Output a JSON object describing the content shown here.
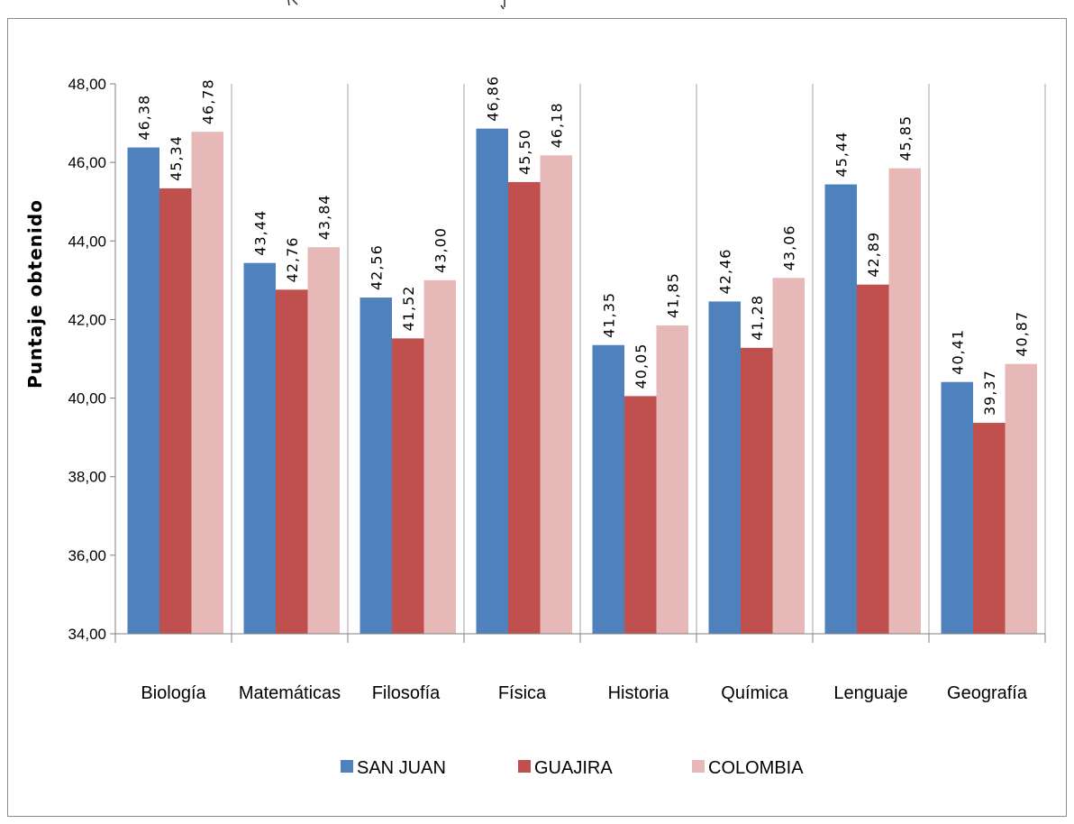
{
  "chart_data": {
    "type": "bar",
    "title": "",
    "xlabel": "",
    "ylabel": "Puntaje obtenido",
    "ylim": [
      34,
      48
    ],
    "yticks": [
      "34,00",
      "36,00",
      "38,00",
      "40,00",
      "42,00",
      "44,00",
      "46,00",
      "48,00"
    ],
    "grid": "vertical category separators",
    "legend_position": "bottom",
    "categories": [
      "Biología",
      "Matemáticas",
      "Filosofía",
      "Física",
      "Historia",
      "Química",
      "Lenguaje",
      "Geografía"
    ],
    "series": [
      {
        "name": "SAN JUAN",
        "color": "#4f81bd",
        "values": [
          46.38,
          43.44,
          42.56,
          46.86,
          41.35,
          42.46,
          45.44,
          40.41
        ],
        "labels": [
          "46,38",
          "43,44",
          "42,56",
          "46,86",
          "41,35",
          "42,46",
          "45,44",
          "40,41"
        ]
      },
      {
        "name": "GUAJIRA",
        "color": "#c0504d",
        "values": [
          45.34,
          42.76,
          41.52,
          45.5,
          40.05,
          41.28,
          42.89,
          39.37
        ],
        "labels": [
          "45,34",
          "42,76",
          "41,52",
          "45,50",
          "40,05",
          "41,28",
          "42,89",
          "39,37"
        ]
      },
      {
        "name": "COLOMBIA",
        "color": "#e6b9b8",
        "values": [
          46.78,
          43.84,
          43.0,
          46.18,
          41.85,
          43.06,
          45.85,
          40.87
        ],
        "labels": [
          "46,78",
          "43,84",
          "43,00",
          "46,18",
          "41,85",
          "43,06",
          "45,85",
          "40,87"
        ]
      }
    ]
  }
}
